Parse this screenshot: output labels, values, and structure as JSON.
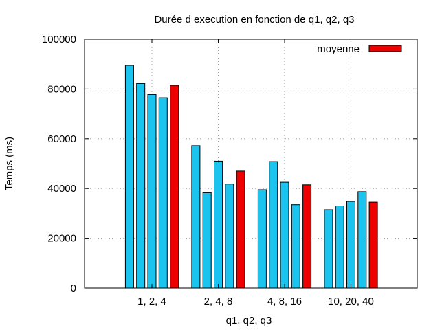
{
  "chart_data": {
    "type": "bar",
    "title": "Durée d execution en fonction de q1, q2, q3",
    "xlabel": "q1, q2, q3",
    "ylabel": "Temps (ms)",
    "ylim": [
      0,
      100000
    ],
    "yticks": [
      "0",
      "20000",
      "40000",
      "60000",
      "80000",
      "100000"
    ],
    "grid": true,
    "legend_position": "top-right",
    "categories": [
      "1, 2, 4",
      "2, 4, 8",
      "4, 8, 16",
      "10, 20, 40"
    ],
    "series": [
      {
        "values": [
          89500,
          57200,
          39500,
          31500
        ]
      },
      {
        "values": [
          82200,
          38300,
          50800,
          33000
        ]
      },
      {
        "values": [
          77800,
          51000,
          42500,
          34800
        ]
      },
      {
        "values": [
          76500,
          41800,
          33500,
          38700
        ]
      },
      {
        "name": "moyenne",
        "values": [
          81500,
          47000,
          41500,
          34500
        ]
      }
    ],
    "colors": {
      "bars": "#1ac4ef",
      "moyenne": "#ee0000",
      "grid": "#a0a0a0"
    }
  }
}
